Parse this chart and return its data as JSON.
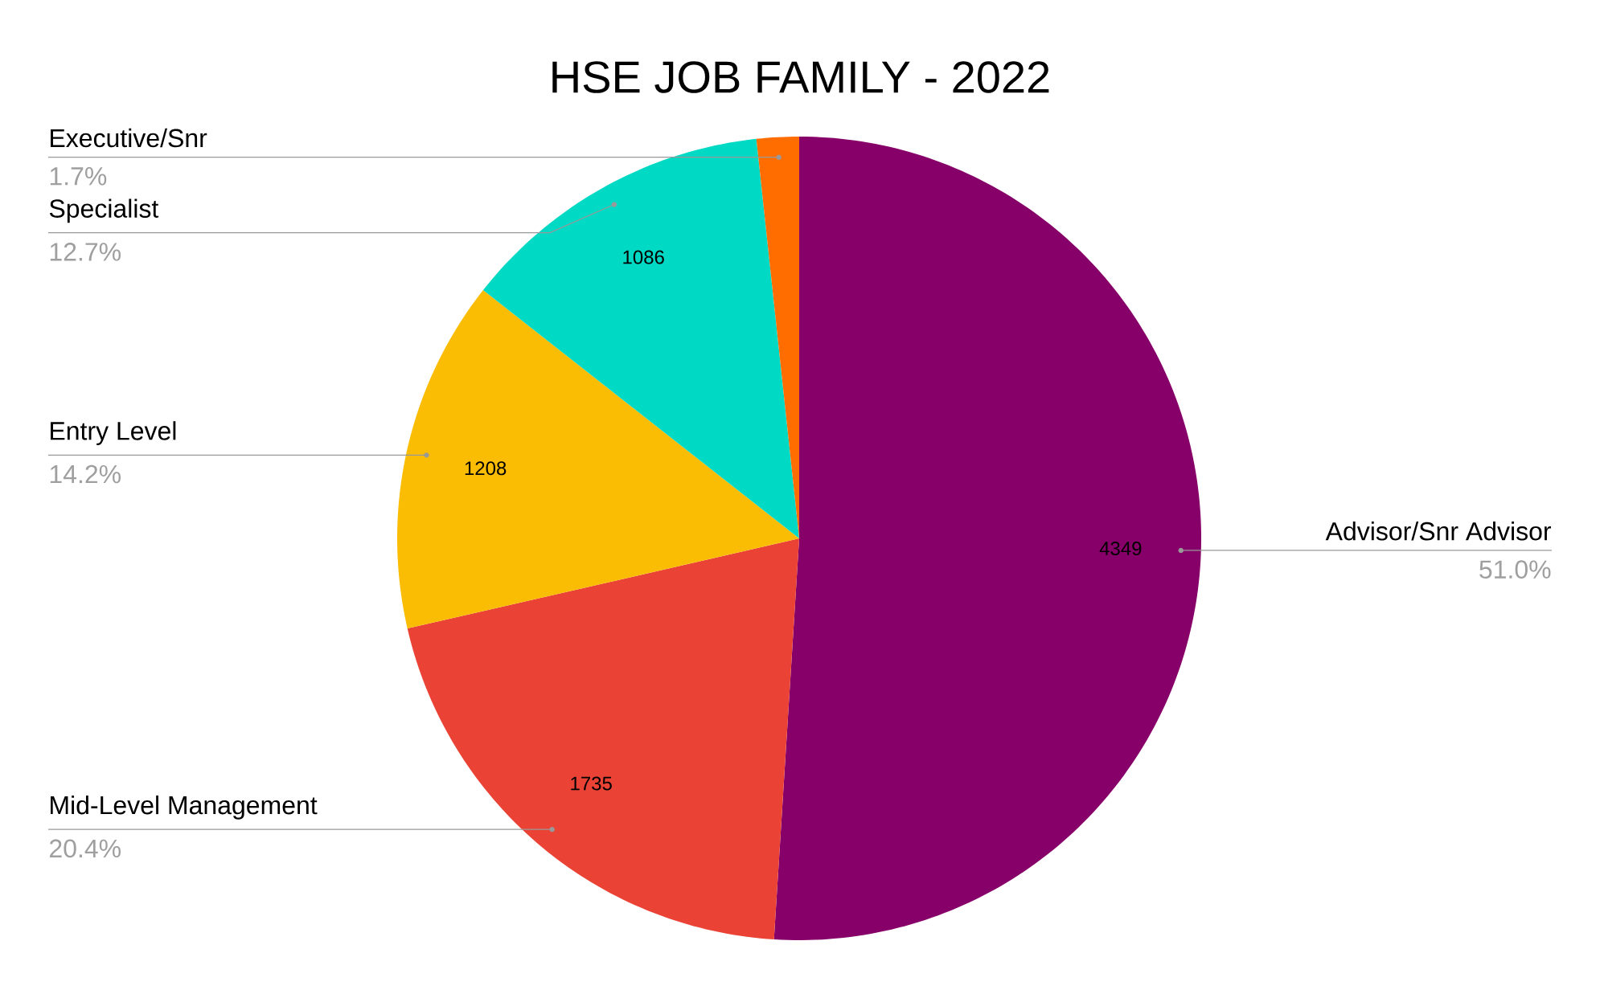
{
  "chart_data": {
    "type": "pie",
    "title": "HSE JOB FAMILY - 2022",
    "categories": [
      "Advisor/Snr Advisor",
      "Mid-Level Management",
      "Entry Level",
      "Specialist",
      "Executive/Snr"
    ],
    "values": [
      51.0,
      20.4,
      14.2,
      12.7,
      1.7
    ],
    "colors": [
      "#870069",
      "#ea4335",
      "#fbbc04",
      "#00d9c4",
      "#ff6d01"
    ],
    "value_labels": [
      "51.0%",
      "20.4%",
      "14.2%",
      "12.7%",
      "1.7%"
    ],
    "annotations": [
      {
        "text": "4349",
        "x": "Advisor/Snr Advisor"
      },
      {
        "text": "1735",
        "x": "Mid-Level Management"
      },
      {
        "text": "1208",
        "x": "Entry Level"
      },
      {
        "text": "1086",
        "x": "Specialist"
      }
    ]
  }
}
